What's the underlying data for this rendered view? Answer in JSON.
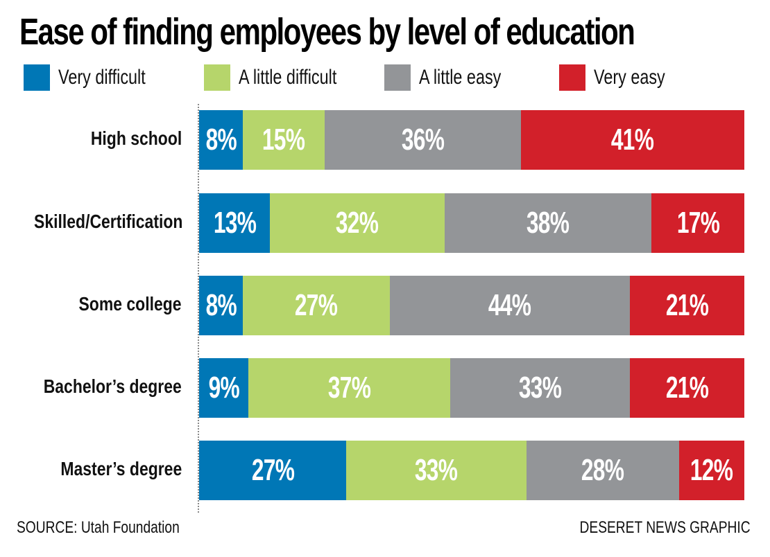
{
  "title": "Ease of finding employees by level of education",
  "legend": [
    {
      "label": "Very difficult",
      "color": "#0077B6"
    },
    {
      "label": "A little difficult",
      "color": "#B6D56B"
    },
    {
      "label": "A little easy",
      "color": "#939598"
    },
    {
      "label": "Very easy",
      "color": "#D2202A"
    }
  ],
  "rows": [
    {
      "label": "High school",
      "values": [
        "8%",
        "15%",
        "36%",
        "41%"
      ]
    },
    {
      "label": "Skilled/Certification",
      "values": [
        "13%",
        "32%",
        "38%",
        "17%"
      ]
    },
    {
      "label": "Some college",
      "values": [
        "8%",
        "27%",
        "44%",
        "21%"
      ]
    },
    {
      "label": "Bachelor’s degree",
      "values": [
        "9%",
        "37%",
        "33%",
        "21%"
      ]
    },
    {
      "label": "Master’s degree",
      "values": [
        "27%",
        "33%",
        "28%",
        "12%"
      ]
    }
  ],
  "footer": {
    "source": "SOURCE: Utah Foundation",
    "credit": "DESERET NEWS GRAPHIC"
  },
  "chart_data": {
    "type": "bar",
    "orientation": "horizontal",
    "stacked": true,
    "title": "Ease of finding employees by level of education",
    "categories": [
      "High school",
      "Skilled/Certification",
      "Some college",
      "Bachelor’s degree",
      "Master’s degree"
    ],
    "series": [
      {
        "name": "Very difficult",
        "color": "#0077B6",
        "values": [
          8,
          13,
          8,
          9,
          27
        ]
      },
      {
        "name": "A little difficult",
        "color": "#B6D56B",
        "values": [
          15,
          32,
          27,
          37,
          33
        ]
      },
      {
        "name": "A little easy",
        "color": "#939598",
        "values": [
          36,
          38,
          44,
          33,
          28
        ]
      },
      {
        "name": "Very easy",
        "color": "#D2202A",
        "values": [
          41,
          17,
          21,
          21,
          12
        ]
      }
    ],
    "xlabel": "",
    "ylabel": "",
    "xlim": [
      0,
      100
    ],
    "unit": "%",
    "grid": false,
    "legend_position": "top",
    "source": "SOURCE: Utah Foundation",
    "credit": "DESERET NEWS GRAPHIC"
  }
}
